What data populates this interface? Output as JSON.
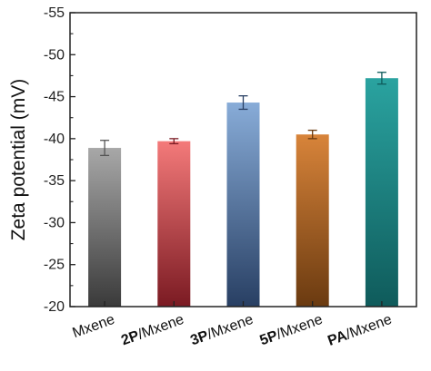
{
  "chart_data": {
    "type": "bar",
    "ylabel": "Zeta potential (mV)",
    "ylim": [
      -20,
      -55
    ],
    "yticks": [
      -20,
      -25,
      -30,
      -35,
      -40,
      -45,
      -50,
      -55
    ],
    "ytick_labels": [
      "-20",
      "-25",
      "-30",
      "-35",
      "-40",
      "-45",
      "-50",
      "-55"
    ],
    "categories": [
      "Mxene",
      "2P/Mxene",
      "3P/Mxene",
      "5P/Mxene",
      "PA/Mxene"
    ],
    "category_parts": [
      {
        "bold": "",
        "rest": "Mxene"
      },
      {
        "bold": "2P",
        "rest": "/Mxene"
      },
      {
        "bold": "3P",
        "rest": "/Mxene"
      },
      {
        "bold": "5P",
        "rest": "/Mxene"
      },
      {
        "bold": "PA",
        "rest": "/Mxene"
      }
    ],
    "values": [
      -38.9,
      -39.7,
      -44.3,
      -40.5,
      -47.2
    ],
    "errors": [
      0.9,
      0.3,
      0.8,
      0.5,
      0.7
    ],
    "colors": [
      {
        "top": "#a8a8a8",
        "bottom": "#3a3a3a",
        "err": "#555555"
      },
      {
        "top": "#f47a7a",
        "bottom": "#7a1a22",
        "err": "#7a1a22"
      },
      {
        "top": "#88acd8",
        "bottom": "#283f63",
        "err": "#283f63"
      },
      {
        "top": "#d8843a",
        "bottom": "#6a3a10",
        "err": "#6a3a10"
      },
      {
        "top": "#2aa3a0",
        "bottom": "#0f5b5b",
        "err": "#0f5b5b"
      }
    ]
  }
}
